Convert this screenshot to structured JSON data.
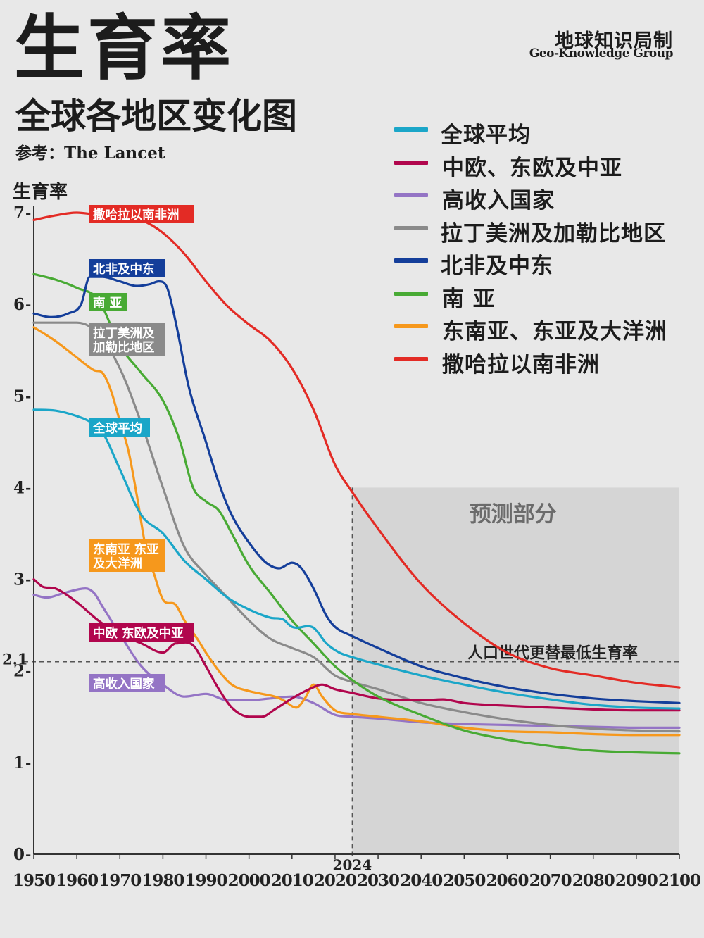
{
  "header": {
    "title": "生育率",
    "subtitle": "全球各地区变化图",
    "source": "参考：The Lancet",
    "brand_cn": "地球知识局制",
    "brand_en": "Geo-Knowledge Group"
  },
  "chart_data": {
    "type": "line",
    "ylabel": "生育率",
    "xlabel": "",
    "xlim": [
      1950,
      2100
    ],
    "ylim": [
      0,
      7
    ],
    "x_ticks": [
      1950,
      1960,
      1970,
      1980,
      1990,
      2000,
      2010,
      2020,
      2030,
      2040,
      2050,
      2060,
      2070,
      2080,
      2090,
      2100
    ],
    "y_ticks": [
      0,
      1,
      2,
      3,
      4,
      5,
      6,
      7
    ],
    "legend_position": "top-right",
    "grid": false,
    "forecast_region": {
      "label": "预测部分",
      "x_start": 2024,
      "x_end": 2100,
      "y_top": 4
    },
    "marker_year": {
      "x": 2024,
      "label": "2024"
    },
    "replacement_line": {
      "y": 2.1,
      "label": "人口世代更替最低生育率",
      "tick_label": "2.1"
    },
    "series": [
      {
        "name": "全球平均",
        "color": "#1ba6c8",
        "label": "全球平均",
        "points": [
          [
            1950,
            4.85
          ],
          [
            1955,
            4.84
          ],
          [
            1960,
            4.78
          ],
          [
            1963,
            4.72
          ],
          [
            1966,
            4.6
          ],
          [
            1970,
            4.2
          ],
          [
            1975,
            3.7
          ],
          [
            1980,
            3.5
          ],
          [
            1985,
            3.2
          ],
          [
            1990,
            3.0
          ],
          [
            1995,
            2.8
          ],
          [
            2000,
            2.67
          ],
          [
            2005,
            2.58
          ],
          [
            2008,
            2.56
          ],
          [
            2010,
            2.48
          ],
          [
            2015,
            2.47
          ],
          [
            2018,
            2.3
          ],
          [
            2021,
            2.2
          ],
          [
            2024,
            2.15
          ],
          [
            2030,
            2.07
          ],
          [
            2040,
            1.95
          ],
          [
            2050,
            1.85
          ],
          [
            2060,
            1.76
          ],
          [
            2070,
            1.69
          ],
          [
            2080,
            1.63
          ],
          [
            2090,
            1.6
          ],
          [
            2100,
            1.59
          ]
        ]
      },
      {
        "name": "中欧、东欧及中亚",
        "color": "#b1064d",
        "label": "中欧 东欧及中亚",
        "points": [
          [
            1950,
            3.0
          ],
          [
            1952,
            2.92
          ],
          [
            1955,
            2.9
          ],
          [
            1960,
            2.75
          ],
          [
            1965,
            2.55
          ],
          [
            1970,
            2.4
          ],
          [
            1975,
            2.3
          ],
          [
            1980,
            2.2
          ],
          [
            1983,
            2.3
          ],
          [
            1987,
            2.28
          ],
          [
            1990,
            2.05
          ],
          [
            1993,
            1.8
          ],
          [
            1996,
            1.6
          ],
          [
            2000,
            1.5
          ],
          [
            2003,
            1.5
          ],
          [
            2006,
            1.58
          ],
          [
            2010,
            1.7
          ],
          [
            2014,
            1.8
          ],
          [
            2017,
            1.85
          ],
          [
            2020,
            1.8
          ],
          [
            2024,
            1.76
          ],
          [
            2030,
            1.7
          ],
          [
            2040,
            1.68
          ],
          [
            2045,
            1.69
          ],
          [
            2050,
            1.65
          ],
          [
            2060,
            1.62
          ],
          [
            2070,
            1.6
          ],
          [
            2080,
            1.58
          ],
          [
            2090,
            1.57
          ],
          [
            2100,
            1.57
          ]
        ]
      },
      {
        "name": "高收入国家",
        "color": "#9474c5",
        "label": "高收入国家",
        "points": [
          [
            1950,
            2.83
          ],
          [
            1953,
            2.8
          ],
          [
            1957,
            2.85
          ],
          [
            1962,
            2.9
          ],
          [
            1964,
            2.85
          ],
          [
            1966,
            2.7
          ],
          [
            1970,
            2.4
          ],
          [
            1975,
            2.05
          ],
          [
            1980,
            1.85
          ],
          [
            1985,
            1.72
          ],
          [
            1990,
            1.75
          ],
          [
            1995,
            1.68
          ],
          [
            2000,
            1.68
          ],
          [
            2005,
            1.7
          ],
          [
            2010,
            1.72
          ],
          [
            2015,
            1.65
          ],
          [
            2020,
            1.52
          ],
          [
            2024,
            1.5
          ],
          [
            2030,
            1.48
          ],
          [
            2040,
            1.44
          ],
          [
            2050,
            1.42
          ],
          [
            2060,
            1.41
          ],
          [
            2070,
            1.4
          ],
          [
            2080,
            1.39
          ],
          [
            2090,
            1.38
          ],
          [
            2100,
            1.38
          ]
        ]
      },
      {
        "name": "拉丁美洲及加勒比地区",
        "color": "#8a8a8a",
        "label": "拉丁美洲及\n加勒比地区",
        "points": [
          [
            1950,
            5.8
          ],
          [
            1955,
            5.8
          ],
          [
            1960,
            5.8
          ],
          [
            1965,
            5.68
          ],
          [
            1970,
            5.3
          ],
          [
            1975,
            4.7
          ],
          [
            1980,
            4.0
          ],
          [
            1985,
            3.35
          ],
          [
            1990,
            3.05
          ],
          [
            1995,
            2.8
          ],
          [
            2000,
            2.55
          ],
          [
            2005,
            2.35
          ],
          [
            2010,
            2.25
          ],
          [
            2015,
            2.15
          ],
          [
            2020,
            1.95
          ],
          [
            2024,
            1.88
          ],
          [
            2030,
            1.8
          ],
          [
            2040,
            1.65
          ],
          [
            2050,
            1.55
          ],
          [
            2060,
            1.47
          ],
          [
            2070,
            1.41
          ],
          [
            2080,
            1.37
          ],
          [
            2090,
            1.35
          ],
          [
            2100,
            1.34
          ]
        ]
      },
      {
        "name": "北非及中东",
        "color": "#143e9a",
        "label": "北非及中东",
        "points": [
          [
            1950,
            5.9
          ],
          [
            1954,
            5.86
          ],
          [
            1958,
            5.9
          ],
          [
            1961,
            6.0
          ],
          [
            1963,
            6.3
          ],
          [
            1966,
            6.3
          ],
          [
            1970,
            6.25
          ],
          [
            1974,
            6.2
          ],
          [
            1977,
            6.22
          ],
          [
            1979,
            6.25
          ],
          [
            1981,
            6.18
          ],
          [
            1983,
            5.8
          ],
          [
            1986,
            5.1
          ],
          [
            1990,
            4.5
          ],
          [
            1993,
            4.05
          ],
          [
            1996,
            3.7
          ],
          [
            2000,
            3.4
          ],
          [
            2004,
            3.18
          ],
          [
            2007,
            3.12
          ],
          [
            2010,
            3.18
          ],
          [
            2012,
            3.13
          ],
          [
            2015,
            2.9
          ],
          [
            2018,
            2.6
          ],
          [
            2020,
            2.48
          ],
          [
            2024,
            2.38
          ],
          [
            2030,
            2.25
          ],
          [
            2040,
            2.05
          ],
          [
            2050,
            1.92
          ],
          [
            2060,
            1.82
          ],
          [
            2070,
            1.75
          ],
          [
            2080,
            1.7
          ],
          [
            2090,
            1.67
          ],
          [
            2100,
            1.65
          ]
        ]
      },
      {
        "name": "南 亚",
        "color": "#48aa34",
        "label": "南 亚",
        "points": [
          [
            1950,
            6.33
          ],
          [
            1955,
            6.27
          ],
          [
            1960,
            6.18
          ],
          [
            1965,
            6.05
          ],
          [
            1970,
            5.55
          ],
          [
            1975,
            5.25
          ],
          [
            1980,
            4.95
          ],
          [
            1984,
            4.5
          ],
          [
            1987,
            4.0
          ],
          [
            1990,
            3.85
          ],
          [
            1993,
            3.75
          ],
          [
            1996,
            3.5
          ],
          [
            2000,
            3.15
          ],
          [
            2005,
            2.85
          ],
          [
            2010,
            2.55
          ],
          [
            2015,
            2.3
          ],
          [
            2020,
            2.05
          ],
          [
            2024,
            1.9
          ],
          [
            2030,
            1.72
          ],
          [
            2040,
            1.52
          ],
          [
            2050,
            1.35
          ],
          [
            2060,
            1.25
          ],
          [
            2070,
            1.18
          ],
          [
            2080,
            1.13
          ],
          [
            2090,
            1.11
          ],
          [
            2100,
            1.1
          ]
        ]
      },
      {
        "name": "东南亚、东亚及大洋洲",
        "color": "#f6981c",
        "label": "东南亚 东亚\n及大洋洲",
        "points": [
          [
            1950,
            5.75
          ],
          [
            1955,
            5.6
          ],
          [
            1960,
            5.42
          ],
          [
            1964,
            5.28
          ],
          [
            1966,
            5.25
          ],
          [
            1968,
            5.05
          ],
          [
            1970,
            4.72
          ],
          [
            1972,
            4.4
          ],
          [
            1974,
            3.9
          ],
          [
            1976,
            3.35
          ],
          [
            1978,
            3.05
          ],
          [
            1980,
            2.78
          ],
          [
            1983,
            2.72
          ],
          [
            1985,
            2.55
          ],
          [
            1988,
            2.35
          ],
          [
            1990,
            2.2
          ],
          [
            1993,
            2.0
          ],
          [
            1996,
            1.85
          ],
          [
            2000,
            1.78
          ],
          [
            2003,
            1.75
          ],
          [
            2006,
            1.72
          ],
          [
            2008,
            1.68
          ],
          [
            2011,
            1.6
          ],
          [
            2013,
            1.7
          ],
          [
            2015,
            1.85
          ],
          [
            2017,
            1.72
          ],
          [
            2020,
            1.57
          ],
          [
            2024,
            1.53
          ],
          [
            2030,
            1.5
          ],
          [
            2040,
            1.45
          ],
          [
            2050,
            1.38
          ],
          [
            2060,
            1.34
          ],
          [
            2070,
            1.33
          ],
          [
            2080,
            1.31
          ],
          [
            2090,
            1.3
          ],
          [
            2100,
            1.3
          ]
        ]
      },
      {
        "name": "撒哈拉以南非洲",
        "color": "#e32b25",
        "label": "撒哈拉以南非洲",
        "points": [
          [
            1950,
            6.92
          ],
          [
            1955,
            6.97
          ],
          [
            1960,
            7.0
          ],
          [
            1965,
            6.98
          ],
          [
            1970,
            6.98
          ],
          [
            1975,
            6.92
          ],
          [
            1980,
            6.78
          ],
          [
            1985,
            6.55
          ],
          [
            1990,
            6.25
          ],
          [
            1995,
            5.98
          ],
          [
            2000,
            5.78
          ],
          [
            2005,
            5.6
          ],
          [
            2010,
            5.3
          ],
          [
            2015,
            4.85
          ],
          [
            2020,
            4.25
          ],
          [
            2024,
            3.95
          ],
          [
            2030,
            3.55
          ],
          [
            2040,
            2.95
          ],
          [
            2050,
            2.52
          ],
          [
            2060,
            2.2
          ],
          [
            2070,
            2.03
          ],
          [
            2080,
            1.95
          ],
          [
            2090,
            1.87
          ],
          [
            2100,
            1.82
          ]
        ]
      }
    ]
  }
}
